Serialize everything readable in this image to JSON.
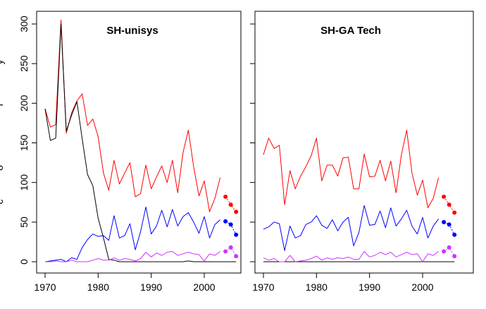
{
  "chart_data": {
    "type": "line",
    "ylim": [
      0,
      310
    ],
    "xlim": [
      1968,
      2007.5
    ],
    "x_ticks": [
      1970,
      1980,
      1990,
      2000
    ],
    "y_ticks": [
      0,
      50,
      100,
      150,
      200,
      250,
      300
    ],
    "ylabel_fragments": [
      "y",
      "r",
      "o",
      "c"
    ],
    "colors": {
      "red": "#ff0000",
      "black": "#000000",
      "blue": "#0000ff",
      "purple": "#cc33ff",
      "dot_red": "#ff0000",
      "dot_blue": "#0000ff",
      "dot_purple": "#cc33ff"
    },
    "panels": [
      {
        "title": "SH-unisys",
        "series": [
          {
            "name": "red",
            "color": "#ff0000",
            "x": [
              1970,
              1971,
              1972,
              1973,
              1974,
              1975,
              1976,
              1977,
              1978,
              1979,
              1980,
              1981,
              1982,
              1983,
              1984,
              1985,
              1986,
              1987,
              1988,
              1989,
              1990,
              1991,
              1992,
              1993,
              1994,
              1995,
              1996,
              1997,
              1998,
              1999,
              2000,
              2001,
              2002,
              2003
            ],
            "values": [
              193,
              170,
              173,
              305,
              162,
              188,
              203,
              212,
              172,
              180,
              158,
              112,
              90,
              128,
              98,
              112,
              125,
              82,
              86,
              122,
              92,
              107,
              121,
              100,
              128,
              87,
              138,
              166,
              120,
              83,
              102,
              63,
              80,
              106
            ]
          },
          {
            "name": "black",
            "color": "#000000",
            "x": [
              1970,
              1971,
              1972,
              1973,
              1974,
              1975,
              1976,
              1977,
              1978,
              1979,
              1980,
              1981,
              1982,
              1983,
              1984,
              1985,
              1986,
              1987,
              1988,
              1989,
              1990,
              1991,
              1992,
              1993,
              1994,
              1995,
              1996,
              1997,
              1998,
              1999,
              2000,
              2001,
              2002,
              2003,
              2004,
              2005,
              2006
            ],
            "values": [
              193,
              153,
              156,
              300,
              165,
              185,
              202,
              155,
              110,
              96,
              55,
              30,
              3,
              2,
              0,
              0,
              0,
              0,
              0,
              0,
              0,
              0,
              0,
              0,
              0,
              0,
              0,
              1,
              0,
              0,
              0,
              0,
              0,
              0,
              0,
              0,
              0
            ]
          },
          {
            "name": "blue",
            "color": "#0000ff",
            "x": [
              1970,
              1971,
              1972,
              1973,
              1974,
              1975,
              1976,
              1977,
              1978,
              1979,
              1980,
              1981,
              1982,
              1983,
              1984,
              1985,
              1986,
              1987,
              1988,
              1989,
              1990,
              1991,
              1992,
              1993,
              1994,
              1995,
              1996,
              1997,
              1998,
              1999,
              2000,
              2001,
              2002,
              2003
            ],
            "values": [
              0,
              1,
              2,
              3,
              0,
              5,
              3,
              18,
              28,
              35,
              32,
              33,
              27,
              58,
              30,
              33,
              48,
              15,
              38,
              69,
              35,
              45,
              65,
              44,
              66,
              45,
              57,
              62,
              50,
              36,
              57,
              30,
              47,
              53
            ]
          },
          {
            "name": "purple",
            "color": "#cc33ff",
            "x": [
              1970,
              1971,
              1972,
              1973,
              1974,
              1975,
              1976,
              1977,
              1978,
              1979,
              1980,
              1981,
              1982,
              1983,
              1984,
              1985,
              1986,
              1987,
              1988,
              1989,
              1990,
              1991,
              1992,
              1993,
              1994,
              1995,
              1996,
              1997,
              1998,
              1999,
              2000,
              2001,
              2002,
              2003
            ],
            "values": [
              0,
              0,
              1,
              0,
              0,
              2,
              0,
              0,
              0,
              2,
              4,
              2,
              2,
              5,
              2,
              4,
              3,
              1,
              4,
              12,
              6,
              11,
              8,
              12,
              13,
              8,
              10,
              12,
              10,
              9,
              1,
              10,
              8,
              13
            ]
          }
        ],
        "points": [
          {
            "name": "red",
            "color": "#ff0000",
            "x": [
              2004,
              2005,
              2006
            ],
            "values": [
              82,
              72,
              63
            ]
          },
          {
            "name": "blue",
            "color": "#0000ff",
            "x": [
              2004,
              2005,
              2006
            ],
            "values": [
              51,
              47,
              34
            ]
          },
          {
            "name": "purple",
            "color": "#cc33ff",
            "x": [
              2004,
              2005,
              2006
            ],
            "values": [
              13,
              18,
              7
            ]
          }
        ]
      },
      {
        "title": "SH-GA Tech",
        "series": [
          {
            "name": "red",
            "color": "#ff0000",
            "x": [
              1970,
              1971,
              1972,
              1973,
              1974,
              1975,
              1976,
              1977,
              1978,
              1979,
              1980,
              1981,
              1982,
              1983,
              1984,
              1985,
              1986,
              1987,
              1988,
              1989,
              1990,
              1991,
              1992,
              1993,
              1994,
              1995,
              1996,
              1997,
              1998,
              1999,
              2000,
              2001,
              2002,
              2003
            ],
            "values": [
              135,
              156,
              143,
              147,
              72,
              115,
              92,
              108,
              120,
              134,
              156,
              102,
              122,
              122,
              108,
              131,
              132,
              92,
              92,
              136,
              107,
              108,
              128,
              102,
              127,
              87,
              135,
              166,
              112,
              84,
              103,
              68,
              80,
              106
            ]
          },
          {
            "name": "black",
            "color": "#000000",
            "x": [
              1970,
              2006
            ],
            "values": [
              0,
              0
            ]
          },
          {
            "name": "blue",
            "color": "#0000ff",
            "x": [
              1970,
              1971,
              1972,
              1973,
              1974,
              1975,
              1976,
              1977,
              1978,
              1979,
              1980,
              1981,
              1982,
              1983,
              1984,
              1985,
              1986,
              1987,
              1988,
              1989,
              1990,
              1991,
              1992,
              1993,
              1994,
              1995,
              1996,
              1997,
              1998,
              1999,
              2000,
              2001,
              2002,
              2003
            ],
            "values": [
              41,
              44,
              50,
              48,
              14,
              45,
              30,
              33,
              47,
              50,
              58,
              46,
              42,
              53,
              39,
              50,
              56,
              20,
              37,
              71,
              46,
              47,
              64,
              43,
              68,
              45,
              54,
              65,
              45,
              35,
              56,
              30,
              45,
              54
            ]
          },
          {
            "name": "purple",
            "color": "#cc33ff",
            "x": [
              1970,
              1971,
              1972,
              1973,
              1974,
              1975,
              1976,
              1977,
              1978,
              1979,
              1980,
              1981,
              1982,
              1983,
              1984,
              1985,
              1986,
              1987,
              1988,
              1989,
              1990,
              1991,
              1992,
              1993,
              1994,
              1995,
              1996,
              1997,
              1998,
              1999,
              2000,
              2001,
              2002,
              2003
            ],
            "values": [
              5,
              2,
              4,
              0,
              0,
              8,
              0,
              1,
              2,
              4,
              7,
              2,
              5,
              3,
              5,
              4,
              6,
              3,
              3,
              13,
              6,
              8,
              12,
              9,
              12,
              6,
              9,
              12,
              9,
              10,
              0,
              10,
              8,
              13
            ]
          }
        ],
        "points": [
          {
            "name": "red",
            "color": "#ff0000",
            "x": [
              2004,
              2005,
              2006
            ],
            "values": [
              82,
              72,
              62
            ]
          },
          {
            "name": "blue",
            "color": "#0000ff",
            "x": [
              2004,
              2005,
              2006
            ],
            "values": [
              50,
              47,
              34
            ]
          },
          {
            "name": "purple",
            "color": "#cc33ff",
            "x": [
              2004,
              2005,
              2006
            ],
            "values": [
              13,
              18,
              7
            ]
          }
        ]
      }
    ]
  }
}
